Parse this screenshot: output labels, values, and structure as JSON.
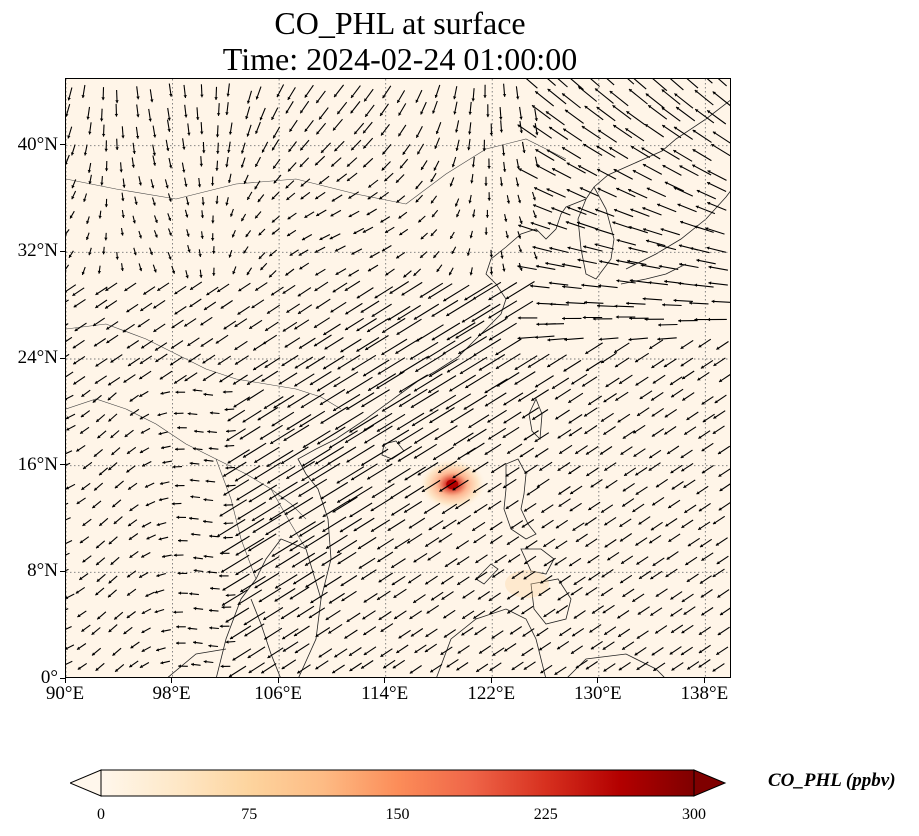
{
  "title": {
    "line1": "CO_PHL at surface",
    "line2": "Time: 2024-02-24 01:00:00"
  },
  "map": {
    "lon_range": [
      90,
      140
    ],
    "lat_range": [
      0,
      45
    ],
    "lon_ticks": [
      "90°E",
      "98°E",
      "106°E",
      "114°E",
      "122°E",
      "130°E",
      "138°E"
    ],
    "lon_tick_values": [
      90,
      98,
      106,
      114,
      122,
      130,
      138
    ],
    "lat_ticks": [
      "0°",
      "8°N",
      "16°N",
      "24°N",
      "32°N",
      "40°N"
    ],
    "lat_tick_values": [
      0,
      8,
      16,
      24,
      32,
      40
    ],
    "gridlines": "dotted",
    "background_color": "#fff5e8",
    "plume_center": {
      "lon": 119.0,
      "lat": 14.6
    },
    "plume_peak_ppbv": 300
  },
  "colorbar": {
    "label": "CO_PHL (ppbv)",
    "ticks": [
      "0",
      "75",
      "150",
      "225",
      "300"
    ],
    "min": 0,
    "max": 300,
    "colormap": "OrRd",
    "colors": [
      "#fff7ec",
      "#fee8c8",
      "#fdd49e",
      "#fdbb84",
      "#fc8d59",
      "#ef6548",
      "#d7301f",
      "#b30000",
      "#7f0000"
    ],
    "extend": "both"
  },
  "wind_field": {
    "icon": "wind-vector-arrows",
    "arrow_color": "#000000"
  }
}
